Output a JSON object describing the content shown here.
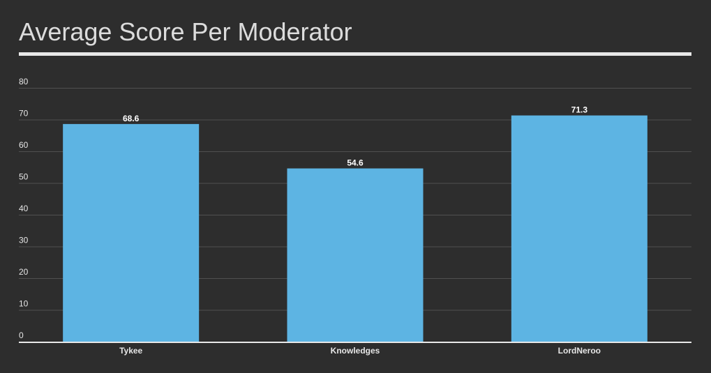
{
  "chart_data": {
    "type": "bar",
    "title": "Average Score Per Moderator",
    "categories": [
      "Tykee",
      "Knowledges",
      "LordNeroo"
    ],
    "values": [
      68.6,
      54.6,
      71.3
    ],
    "data_labels": [
      "68.6",
      "54.6",
      "71.3"
    ],
    "y_ticks": [
      "0",
      "10",
      "20",
      "30",
      "40",
      "50",
      "60",
      "70",
      "80"
    ],
    "ylim": [
      0,
      80
    ],
    "xlabel": "",
    "ylabel": "",
    "grid": true,
    "legend": "none",
    "colors": {
      "background": "#2d2d2d",
      "bar": "#5db4e3",
      "grid": "#505050",
      "axis": "#e8e8e8",
      "text": "#e6e6e6"
    }
  }
}
